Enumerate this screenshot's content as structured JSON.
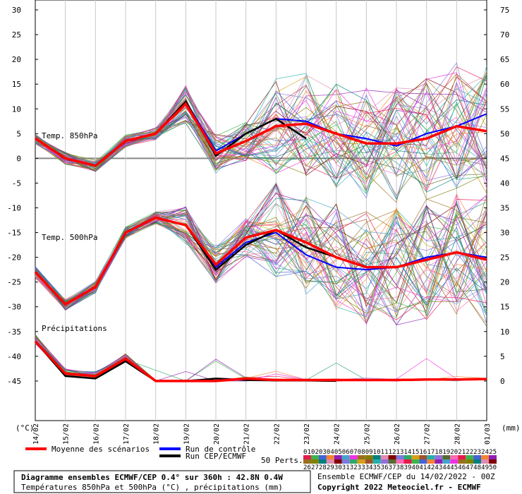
{
  "title_box": {
    "line1": "Diagramme ensembles ECMWF/CEP 0.4° sur 360h : 42.8N 0.4W",
    "line2": "Températures 850hPa et 500hPa (°C) , précipitations (mm)"
  },
  "credits": {
    "run": "Ensemble ECMWF/CEP du 14/02/2022 - 00Z",
    "copyright": "Copyright 2022 Meteociel.fr - ECMWF"
  },
  "legend": {
    "mean": "Moyenne des scénarios",
    "control": "Run de contrôle",
    "oper": "Run CEP/ECMWF",
    "perts_label": "50 Perts.",
    "pert_row1": "01020304050607080910111213141516171819202122232425",
    "pert_row2": "26272829303132333435363738394041424344454647484950"
  },
  "chart_data": {
    "type": "line",
    "x": [
      "14/02",
      "15/02",
      "16/02",
      "17/02",
      "18/02",
      "19/02",
      "20/02",
      "21/02",
      "22/02",
      "23/02",
      "24/02",
      "25/02",
      "26/02",
      "27/02",
      "28/02",
      "01/03"
    ],
    "left_axis": {
      "unit": "(°C)",
      "ticks": [
        30,
        25,
        20,
        15,
        10,
        5,
        0,
        -5,
        -10,
        -15,
        -20,
        -25,
        -30,
        -35,
        -40,
        -45
      ],
      "ylim": [
        -53,
        32
      ]
    },
    "right_axis": {
      "unit": "(mm)",
      "ticks": [
        75,
        70,
        65,
        60,
        55,
        50,
        45,
        40,
        35,
        30,
        25,
        20,
        15,
        10,
        5,
        0
      ]
    },
    "panels": [
      {
        "name": "Temp. 850hPa",
        "mean": [
          4,
          0,
          -1.5,
          3.5,
          5,
          11,
          1,
          3.5,
          6.5,
          7,
          5,
          3,
          3,
          4,
          6.5,
          5.5
        ],
        "control": [
          4,
          0,
          -1.5,
          3.5,
          5,
          11.5,
          1.5,
          5,
          8,
          7.5,
          5,
          4,
          2.5,
          5,
          6.5,
          9
        ],
        "oper": [
          4,
          0,
          -1.5,
          3.5,
          5,
          11.5,
          0.5,
          5,
          8,
          4
        ]
      },
      {
        "name": "Temp. 500hPa",
        "mean": [
          -23,
          -29.5,
          -26,
          -15,
          -12,
          -13.5,
          -21.5,
          -16,
          -14.5,
          -17,
          -20,
          -22,
          -22,
          -20.5,
          -19,
          -20.5
        ],
        "control": [
          -23,
          -29.5,
          -26,
          -15,
          -12,
          -13.5,
          -22,
          -17,
          -15,
          -19.5,
          -22,
          -22.5,
          -22,
          -20,
          -19,
          -20
        ],
        "oper": [
          -23,
          -29.5,
          -26,
          -15,
          -12,
          -13.5,
          -22.5,
          -17.5,
          -14.5,
          -18,
          -20
        ]
      },
      {
        "name": "Précipitations",
        "mean": [
          -37,
          -43.5,
          -44,
          -40.5,
          -45,
          -45,
          -45,
          -44.5,
          -44.8,
          -44.8,
          -44.8,
          -44.8,
          -44.8,
          -44.7,
          -44.7,
          -44.6
        ],
        "oper": [
          -37,
          -44,
          -44.5,
          -41,
          -45,
          -45,
          -44.5,
          -44.8,
          -44.9,
          -44.9,
          -45
        ]
      }
    ],
    "colors": {
      "mean": "#ff0000",
      "control": "#0000ff",
      "oper": "#000000"
    }
  }
}
